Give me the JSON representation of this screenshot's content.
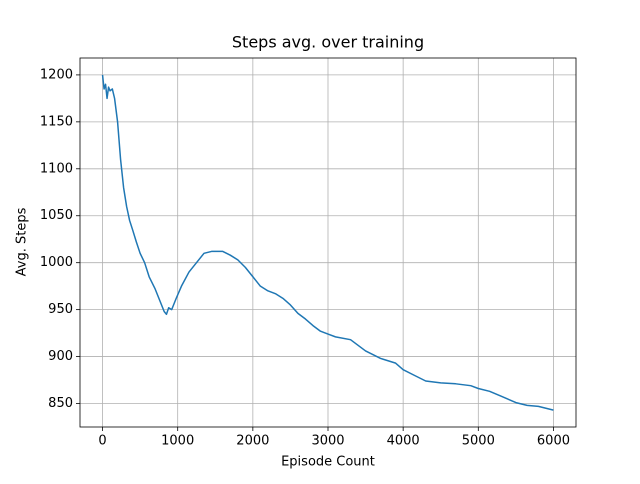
{
  "chart_data": {
    "type": "line",
    "title": "Steps avg. over training",
    "x_label": "Episode Count",
    "y_label": "Avg. Steps",
    "x": [
      0,
      20,
      40,
      60,
      80,
      100,
      130,
      160,
      200,
      240,
      280,
      320,
      360,
      400,
      450,
      500,
      560,
      620,
      700,
      760,
      820,
      850,
      880,
      920,
      980,
      1050,
      1150,
      1250,
      1350,
      1450,
      1600,
      1700,
      1800,
      1900,
      2000,
      2100,
      2200,
      2300,
      2400,
      2500,
      2600,
      2700,
      2800,
      2900,
      3000,
      3100,
      3300,
      3400,
      3500,
      3700,
      3900,
      4000,
      4150,
      4300,
      4500,
      4700,
      4900,
      5000,
      5150,
      5300,
      5500,
      5650,
      5800,
      5900,
      6000
    ],
    "values": [
      1200,
      1185,
      1190,
      1175,
      1187,
      1183,
      1185,
      1175,
      1150,
      1110,
      1080,
      1060,
      1045,
      1035,
      1022,
      1010,
      1000,
      985,
      972,
      960,
      948,
      945,
      952,
      950,
      962,
      975,
      990,
      1000,
      1010,
      1012,
      1012,
      1008,
      1003,
      995,
      985,
      975,
      970,
      967,
      962,
      955,
      946,
      940,
      933,
      927,
      924,
      921,
      918,
      912,
      906,
      898,
      893,
      886,
      880,
      874,
      872,
      871,
      869,
      866,
      863,
      858,
      851,
      848,
      847,
      845,
      843
    ],
    "color": "#1f77b4",
    "xlim": [
      -300,
      6300
    ],
    "xticks": [
      0,
      1000,
      2000,
      3000,
      4000,
      5000,
      6000
    ],
    "ylim": [
      825,
      1218
    ],
    "yticks": [
      850,
      900,
      950,
      1000,
      1050,
      1100,
      1150,
      1200
    ],
    "grid": true
  }
}
